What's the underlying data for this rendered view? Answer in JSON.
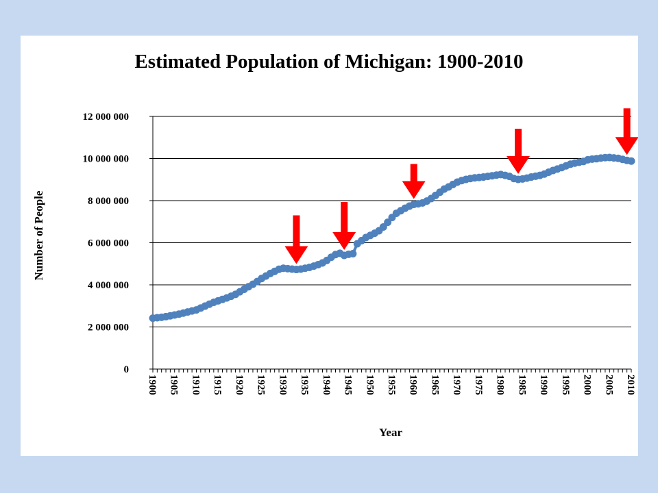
{
  "chart_data": {
    "type": "line",
    "title": "Estimated Population of Michigan: 1900-2010",
    "xlabel": "Year",
    "ylabel": "Number of People",
    "xlim": [
      1900,
      2010
    ],
    "ylim": [
      0,
      12000000
    ],
    "yticks": [
      0,
      2000000,
      4000000,
      6000000,
      8000000,
      10000000,
      12000000
    ],
    "ytick_labels": [
      "0",
      "2 000 000",
      "4 000 000",
      "6 000 000",
      "8 000 000",
      "10 000 000",
      "12 000 000"
    ],
    "xtick_labels": [
      "1900",
      "1905",
      "1910",
      "1915",
      "1920",
      "1925",
      "1930",
      "1935",
      "1940",
      "1945",
      "1950",
      "1955",
      "1960",
      "1965",
      "1970",
      "1975",
      "1980",
      "1985",
      "1990",
      "1995",
      "2000",
      "2005",
      "2010"
    ],
    "grid": "horizontal",
    "series_color": "#4f81bd",
    "arrow_color": "#ff0000",
    "arrow_years": [
      1933,
      1944,
      1960,
      1984,
      2009
    ],
    "series": [
      {
        "x": [
          1900,
          1901,
          1902,
          1903,
          1904,
          1905,
          1906,
          1907,
          1908,
          1909,
          1910,
          1911,
          1912,
          1913,
          1914,
          1915,
          1916,
          1917,
          1918,
          1919,
          1920,
          1921,
          1922,
          1923,
          1924,
          1925,
          1926,
          1927,
          1928,
          1929,
          1930,
          1931,
          1932,
          1933,
          1934,
          1935,
          1936,
          1937,
          1938,
          1939,
          1940,
          1941,
          1942,
          1943,
          1944,
          1945,
          1946,
          1947,
          1948,
          1949,
          1950,
          1951,
          1952,
          1953,
          1954,
          1955,
          1956,
          1957,
          1958,
          1959,
          1960,
          1961,
          1962,
          1963,
          1964,
          1965,
          1966,
          1967,
          1968,
          1969,
          1970,
          1971,
          1972,
          1973,
          1974,
          1975,
          1976,
          1977,
          1978,
          1979,
          1980,
          1981,
          1982,
          1983,
          1984,
          1985,
          1986,
          1987,
          1988,
          1989,
          1990,
          1991,
          1992,
          1993,
          1994,
          1995,
          1996,
          1997,
          1998,
          1999,
          2000,
          2001,
          2002,
          2003,
          2004,
          2005,
          2006,
          2007,
          2008,
          2009,
          2010
        ],
        "values": [
          2420000,
          2440000,
          2460000,
          2490000,
          2530000,
          2570000,
          2610000,
          2660000,
          2710000,
          2760000,
          2810000,
          2900000,
          2990000,
          3080000,
          3170000,
          3240000,
          3310000,
          3380000,
          3460000,
          3550000,
          3670000,
          3790000,
          3910000,
          4030000,
          4160000,
          4300000,
          4420000,
          4540000,
          4640000,
          4740000,
          4790000,
          4770000,
          4750000,
          4730000,
          4750000,
          4790000,
          4830000,
          4890000,
          4960000,
          5040000,
          5160000,
          5310000,
          5440000,
          5500000,
          5400000,
          5450000,
          5480000,
          5950000,
          6100000,
          6250000,
          6350000,
          6450000,
          6570000,
          6750000,
          6970000,
          7200000,
          7400000,
          7520000,
          7640000,
          7740000,
          7820000,
          7850000,
          7890000,
          7980000,
          8100000,
          8250000,
          8400000,
          8550000,
          8650000,
          8770000,
          8880000,
          8950000,
          9010000,
          9050000,
          9080000,
          9100000,
          9120000,
          9150000,
          9180000,
          9210000,
          9240000,
          9200000,
          9150000,
          9050000,
          9010000,
          9030000,
          9070000,
          9120000,
          9160000,
          9200000,
          9260000,
          9350000,
          9430000,
          9500000,
          9570000,
          9650000,
          9730000,
          9780000,
          9820000,
          9860000,
          9940000,
          9970000,
          9990000,
          10020000,
          10040000,
          10050000,
          10030000,
          10010000,
          9960000,
          9910000,
          9880000
        ]
      }
    ]
  }
}
